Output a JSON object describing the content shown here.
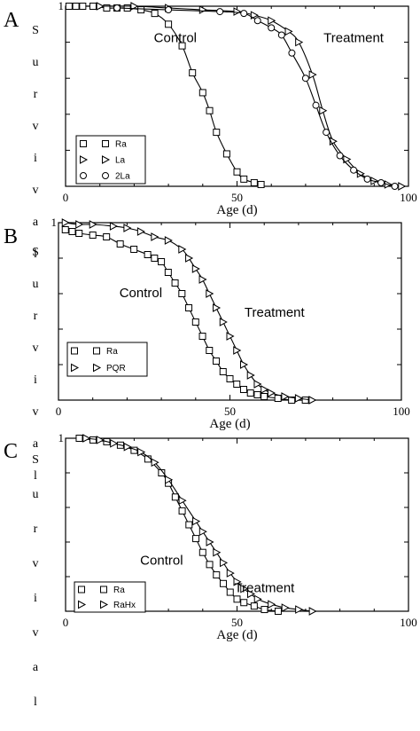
{
  "chart_data": [
    {
      "type": "scatter",
      "panel_letter": "A",
      "xlabel": "Age (d)",
      "ylabel": "Survival",
      "xlim": [
        0,
        100
      ],
      "ylim": [
        0,
        1
      ],
      "x_ticks": [
        0,
        50,
        100
      ],
      "y_ticks": [
        1
      ],
      "grid": false,
      "legend_placement": "bottom-left",
      "annotations": [
        {
          "text": "Control",
          "x": 32,
          "y": 0.8
        },
        {
          "text": "Treatment",
          "x": 84,
          "y": 0.8
        }
      ],
      "legend": [
        {
          "marker": "square",
          "left": "□",
          "right": "□",
          "label": "Ra"
        },
        {
          "marker": "triangle",
          "left": "▷",
          "right": "▷",
          "label": "La"
        },
        {
          "marker": "circle",
          "left": "○",
          "right": "○",
          "label": "2La"
        }
      ],
      "series": [
        {
          "marker": "square",
          "x": [
            1,
            3,
            5,
            8,
            12,
            15,
            18,
            22,
            26,
            30,
            34,
            37,
            40,
            42,
            44,
            47,
            50,
            52,
            55,
            57
          ],
          "y": [
            1.0,
            1.0,
            1.0,
            1.0,
            0.99,
            0.99,
            0.99,
            0.98,
            0.96,
            0.9,
            0.78,
            0.63,
            0.52,
            0.42,
            0.3,
            0.18,
            0.08,
            0.04,
            0.02,
            0.01
          ]
        },
        {
          "marker": "triangle",
          "x": [
            10,
            20,
            30,
            40,
            50,
            55,
            60,
            65,
            68,
            72,
            75,
            78,
            82,
            86,
            90,
            94,
            98
          ],
          "y": [
            1.0,
            1.0,
            0.99,
            0.98,
            0.97,
            0.95,
            0.92,
            0.86,
            0.8,
            0.62,
            0.42,
            0.25,
            0.15,
            0.07,
            0.03,
            0.01,
            0.0
          ]
        },
        {
          "marker": "circle",
          "x": [
            15,
            30,
            45,
            52,
            56,
            60,
            63,
            66,
            70,
            73,
            76,
            80,
            84,
            88,
            92,
            96
          ],
          "y": [
            0.99,
            0.98,
            0.97,
            0.96,
            0.92,
            0.88,
            0.84,
            0.74,
            0.6,
            0.45,
            0.3,
            0.17,
            0.09,
            0.04,
            0.02,
            0.0
          ]
        }
      ]
    },
    {
      "type": "scatter",
      "panel_letter": "B",
      "xlabel": "Age (d)",
      "ylabel": "Survival",
      "xlim": [
        0,
        100
      ],
      "ylim": [
        0,
        1
      ],
      "x_ticks": [
        0,
        50,
        100
      ],
      "y_ticks": [
        1
      ],
      "grid": false,
      "legend_placement": "bottom-left",
      "annotations": [
        {
          "text": "Control",
          "x": 24,
          "y": 0.58
        },
        {
          "text": "Treatment",
          "x": 63,
          "y": 0.47
        }
      ],
      "legend": [
        {
          "marker": "square",
          "left": "□",
          "right": "□",
          "label": "Ra"
        },
        {
          "marker": "triangle",
          "left": "▷",
          "right": "▷",
          "label": "PQR"
        }
      ],
      "series": [
        {
          "marker": "square",
          "x": [
            2,
            4,
            6,
            10,
            14,
            18,
            22,
            26,
            28,
            30,
            32,
            34,
            36,
            38,
            40,
            42,
            44,
            46,
            48,
            50,
            52,
            54,
            56,
            58,
            60,
            64,
            68,
            72
          ],
          "y": [
            0.96,
            0.95,
            0.94,
            0.93,
            0.92,
            0.88,
            0.85,
            0.82,
            0.8,
            0.78,
            0.72,
            0.66,
            0.6,
            0.52,
            0.44,
            0.36,
            0.28,
            0.22,
            0.16,
            0.12,
            0.09,
            0.06,
            0.04,
            0.03,
            0.02,
            0.01,
            0.0,
            0.0
          ]
        },
        {
          "marker": "triangle",
          "x": [
            2,
            6,
            10,
            16,
            20,
            24,
            28,
            32,
            36,
            38,
            40,
            42,
            44,
            46,
            48,
            50,
            52,
            54,
            56,
            58,
            60,
            62,
            66,
            70,
            74
          ],
          "y": [
            1.0,
            0.99,
            0.99,
            0.98,
            0.97,
            0.95,
            0.92,
            0.9,
            0.85,
            0.8,
            0.74,
            0.68,
            0.6,
            0.52,
            0.44,
            0.36,
            0.28,
            0.2,
            0.14,
            0.09,
            0.06,
            0.04,
            0.02,
            0.01,
            0.0
          ]
        }
      ]
    },
    {
      "type": "scatter",
      "panel_letter": "C",
      "xlabel": "Age (d)",
      "ylabel": "Survival",
      "xlim": [
        0,
        100
      ],
      "ylim": [
        0,
        1
      ],
      "x_ticks": [
        0,
        50,
        100
      ],
      "y_ticks": [
        1
      ],
      "grid": false,
      "legend_placement": "bottom-left",
      "annotations": [
        {
          "text": "Control",
          "x": 28,
          "y": 0.27
        },
        {
          "text": "Treatment",
          "x": 58,
          "y": 0.11
        }
      ],
      "legend": [
        {
          "marker": "square",
          "left": "□",
          "right": "□",
          "label": "Ra"
        },
        {
          "marker": "triangle",
          "left": "▷",
          "right": "▷",
          "label": "RaHx"
        }
      ],
      "series": [
        {
          "marker": "square",
          "x": [
            4,
            8,
            12,
            16,
            20,
            24,
            28,
            30,
            32,
            34,
            36,
            38,
            40,
            42,
            44,
            46,
            48,
            50,
            52,
            55,
            58,
            62
          ],
          "y": [
            1.0,
            0.99,
            0.98,
            0.96,
            0.93,
            0.88,
            0.8,
            0.74,
            0.66,
            0.58,
            0.5,
            0.42,
            0.34,
            0.27,
            0.21,
            0.16,
            0.11,
            0.07,
            0.05,
            0.03,
            0.01,
            0.0
          ]
        },
        {
          "marker": "triangle",
          "x": [
            6,
            10,
            14,
            18,
            22,
            26,
            30,
            34,
            38,
            40,
            42,
            44,
            46,
            48,
            50,
            52,
            54,
            56,
            60,
            64,
            68,
            72
          ],
          "y": [
            1.0,
            0.99,
            0.97,
            0.95,
            0.92,
            0.86,
            0.76,
            0.64,
            0.52,
            0.46,
            0.4,
            0.34,
            0.28,
            0.22,
            0.17,
            0.13,
            0.1,
            0.07,
            0.04,
            0.02,
            0.01,
            0.0
          ]
        }
      ]
    }
  ]
}
